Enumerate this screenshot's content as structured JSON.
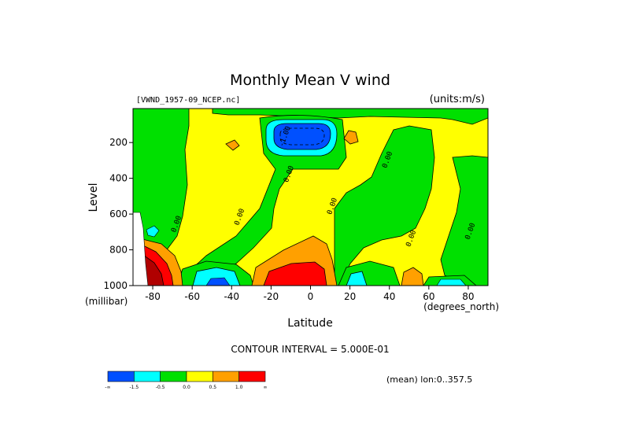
{
  "chart_data": {
    "type": "heatmap",
    "title": "Monthly Mean V wind",
    "dataset_label": "[VWND_1957-09_NCEP.nc]",
    "units_label": "(units:m/s)",
    "xlabel": "Latitude",
    "x_units": "(degrees_north)",
    "ylabel": "Level",
    "y_units": "(millibar)",
    "xlim": [
      -90,
      90
    ],
    "ylim": [
      1000,
      10
    ],
    "y_reversed": true,
    "x_ticks": [
      -80,
      -60,
      -40,
      -20,
      0,
      20,
      40,
      60,
      80
    ],
    "y_ticks": [
      200,
      400,
      600,
      800,
      1000
    ],
    "contour_interval_text": "CONTOUR INTERVAL = 5.000E-01",
    "mean_note": "(mean) lon:0..357.5",
    "contour_labels": [
      {
        "text": "0.00",
        "lat": -67,
        "level": 660
      },
      {
        "text": "0.00",
        "lat": -35,
        "level": 620
      },
      {
        "text": "0.00",
        "lat": -10,
        "level": 380
      },
      {
        "text": "0.00",
        "lat": 12,
        "level": 560
      },
      {
        "text": "0.00",
        "lat": 40,
        "level": 300
      },
      {
        "text": "0.00",
        "lat": 52,
        "level": 740
      },
      {
        "text": "0.00",
        "lat": 82,
        "level": 700
      },
      {
        "text": "-1.00",
        "lat": -12,
        "level": 170
      }
    ],
    "colorbar": {
      "colors": [
        "#0050ff",
        "#00ffff",
        "#00e000",
        "#ffff00",
        "#ffa000",
        "#ff0000"
      ],
      "tick_labels": [
        "-∞",
        "-1.5",
        "-0.5",
        "0.0",
        "0.5",
        "1.0",
        "∞"
      ]
    }
  }
}
